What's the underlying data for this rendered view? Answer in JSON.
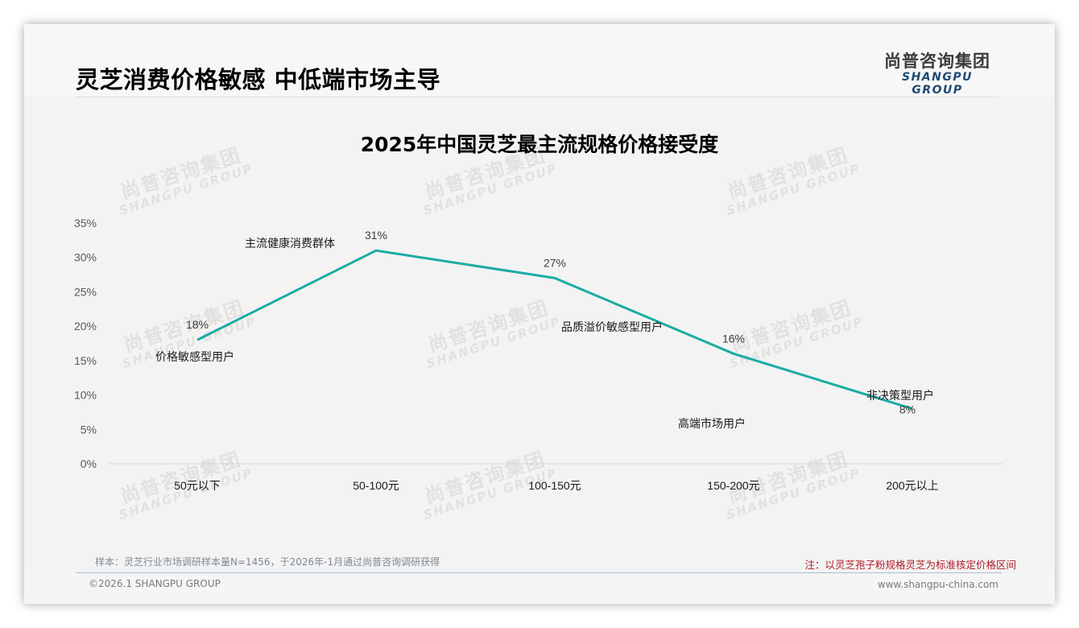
{
  "header": {
    "title": "灵芝消费价格敏感 中低端市场主导",
    "logo_cn": "尚普咨询集团",
    "logo_en": "SHANGPU GROUP"
  },
  "watermark": {
    "cn": "尚普咨询集团",
    "en": "SHANGPU GROUP"
  },
  "chart_data": {
    "type": "line",
    "title": "2025年中国灵芝最主流规格价格接受度",
    "xlabel": "",
    "ylabel": "",
    "categories": [
      "50元以下",
      "50-100元",
      "100-150元",
      "150-200元",
      "200元以上"
    ],
    "series": [
      {
        "name": "价格接受度",
        "values": [
          18,
          31,
          27,
          16,
          8
        ],
        "value_labels": [
          "18%",
          "31%",
          "27%",
          "16%",
          "8%"
        ],
        "color": "#1aaca4"
      }
    ],
    "annotations": [
      "价格敏感型用户",
      "主流健康消费群体",
      "品质溢价敏感型用户",
      "高端市场用户",
      "非决策型用户"
    ],
    "y_ticks": [
      "0%",
      "5%",
      "10%",
      "15%",
      "20%",
      "25%",
      "30%",
      "35%"
    ],
    "ylim": [
      0,
      35
    ],
    "grid": false,
    "legend": "none"
  },
  "footer": {
    "source": "样本：灵芝行业市场调研样本量N=1456，于2026年-1月通过尚普咨询调研获得",
    "note": "注：以灵芝孢子粉规格灵芝为标准核定价格区间",
    "copyright": "©2026.1 SHANGPU GROUP",
    "website": "www.shangpu-china.com"
  },
  "colors": {
    "line": "#1aaca4",
    "note_red": "#b01e2a",
    "logo_blue": "#1e4b73"
  }
}
